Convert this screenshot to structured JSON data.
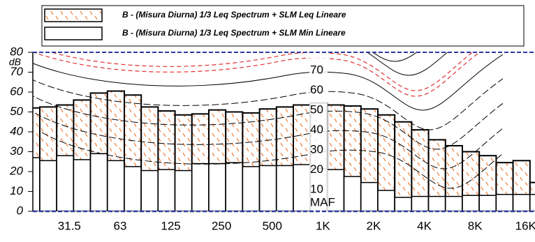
{
  "chart_data": {
    "type": "bar",
    "y_label": "dB",
    "categories": [
      null,
      null,
      "31.5",
      null,
      null,
      "63",
      null,
      null,
      "125",
      null,
      null,
      "250",
      null,
      null,
      "500",
      null,
      null,
      "1K",
      null,
      null,
      "2K",
      null,
      null,
      "4K",
      null,
      null,
      "8K",
      null,
      null,
      "16K",
      null
    ],
    "series": [
      {
        "name": "B - (Misura Diurna) 1/3 Leq Spectrum + SLM Leq Lineare",
        "color": "#f07830",
        "values": [
          52,
          52.5,
          53.5,
          56,
          59.5,
          60.5,
          58.5,
          52.5,
          50.5,
          48.5,
          49,
          51,
          50,
          49.5,
          51.5,
          52.5,
          53.5,
          54.5,
          53.5,
          53,
          51.5,
          48.5,
          45,
          41,
          36,
          33,
          30,
          28,
          24.5,
          25.5,
          14.5
        ]
      },
      {
        "name": "B - (Misura Diurna) 1/3 Leq Spectrum + SLM Min Lineare",
        "color": "#ffffff",
        "values": [
          27,
          25.5,
          28,
          26,
          29,
          25.5,
          22.5,
          20.5,
          21,
          20.5,
          24,
          24,
          24.5,
          22.5,
          23,
          23,
          23.5,
          21.5,
          21,
          17.5,
          14.5,
          10.5,
          7,
          7.5,
          7.5,
          7.5,
          8,
          8,
          8.5,
          8.5,
          8.5
        ]
      }
    ],
    "ylim": [
      0,
      80
    ],
    "yticks": [
      0,
      10,
      20,
      30,
      40,
      50,
      60,
      70,
      80
    ],
    "contour_labels": [
      "70",
      "60",
      "50",
      "40",
      "30",
      "20",
      "10",
      "MAF"
    ]
  }
}
